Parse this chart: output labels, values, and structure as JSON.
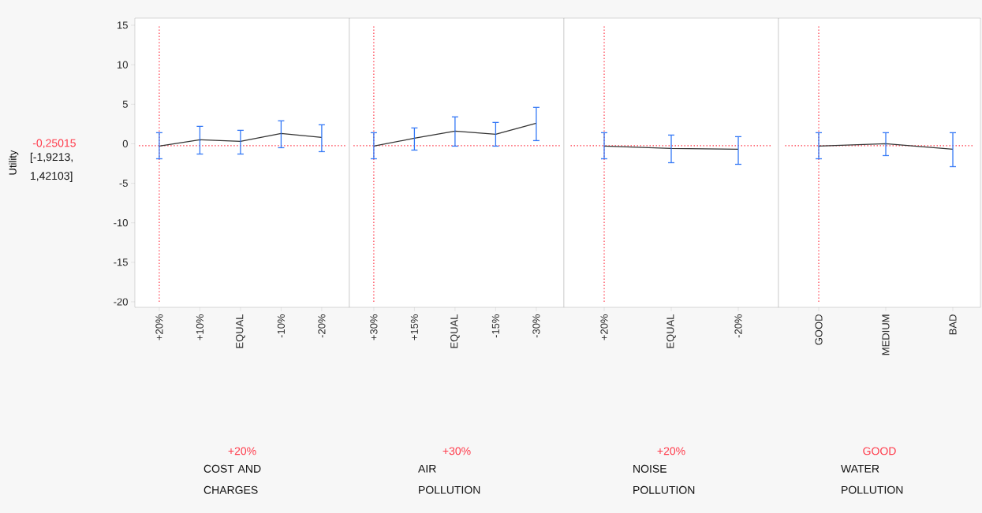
{
  "chart_data": [
    {
      "type": "line",
      "ylabel": "Utility",
      "xlabel": "COST AND CHARGES",
      "categories": [
        "+20%",
        "+10%",
        "EQUAL",
        "-10%",
        "-20%"
      ],
      "annotations": [
        "+20%",
        "-0,25015",
        "[-1,9213, 1,42103]"
      ],
      "series": [
        {
          "color": "#333333",
          "values": [
            -0.3,
            0.5,
            0.3,
            1.3,
            0.8
          ],
          "errors": [
            [
              -1.9,
              1.4
            ],
            [
              -1.3,
              2.2
            ],
            [
              -1.3,
              1.7
            ],
            [
              -0.5,
              2.9
            ],
            [
              -1.0,
              2.4
            ]
          ]
        }
      ],
      "ylim": [
        -20.7,
        15.9
      ],
      "yticks": [
        -20,
        -15,
        -10,
        -5,
        0,
        5,
        10,
        15
      ],
      "marker": "none",
      "line_style": "solid",
      "ref_lines": [
        {
          "axis": "y",
          "value": -0.25015,
          "color": "#ff3b4b",
          "line_style": "dotted"
        },
        {
          "axis": "x",
          "value": "+20%",
          "color": "#ff3b4b",
          "line_style": "dotted"
        }
      ]
    },
    {
      "type": "line",
      "xlabel": "AIR POLLUTION",
      "categories": [
        "+30%",
        "+15%",
        "EQUAL",
        "-15%",
        "-30%"
      ],
      "annotations": [
        "+30%"
      ],
      "series": [
        {
          "color": "#333333",
          "values": [
            -0.3,
            0.7,
            1.6,
            1.2,
            2.6
          ],
          "errors": [
            [
              -1.9,
              1.4
            ],
            [
              -0.8,
              2.0
            ],
            [
              -0.3,
              3.4
            ],
            [
              -0.3,
              2.7
            ],
            [
              0.4,
              4.6
            ]
          ]
        }
      ],
      "ylim": [
        -20.7,
        15.9
      ],
      "yticks": [
        -20,
        -15,
        -10,
        -5,
        0,
        5,
        10,
        15
      ],
      "tick_labels": "x",
      "marker": "none",
      "line_style": "solid",
      "ref_lines": [
        {
          "axis": "y",
          "value": -0.25015,
          "color": "#ff3b4b",
          "line_style": "dotted"
        },
        {
          "axis": "x",
          "value": "+30%",
          "color": "#ff3b4b",
          "line_style": "dotted"
        }
      ]
    },
    {
      "type": "line",
      "xlabel": "NOISE POLLUTION",
      "categories": [
        "+20%",
        "EQUAL",
        "-20%"
      ],
      "annotations": [
        "+20%"
      ],
      "series": [
        {
          "color": "#333333",
          "values": [
            -0.3,
            -0.6,
            -0.7
          ],
          "errors": [
            [
              -1.9,
              1.4
            ],
            [
              -2.4,
              1.1
            ],
            [
              -2.6,
              0.9
            ]
          ]
        }
      ],
      "ylim": [
        -20.7,
        15.9
      ],
      "yticks": [
        -20,
        -15,
        -10,
        -5,
        0,
        5,
        10,
        15
      ],
      "tick_labels": "x",
      "marker": "none",
      "line_style": "solid",
      "ref_lines": [
        {
          "axis": "y",
          "value": -0.25015,
          "color": "#ff3b4b",
          "line_style": "dotted"
        },
        {
          "axis": "x",
          "value": "+20%",
          "color": "#ff3b4b",
          "line_style": "dotted"
        }
      ]
    },
    {
      "type": "line",
      "xlabel": "WATER POLLUTION",
      "categories": [
        "GOOD",
        "MEDIUM",
        "BAD"
      ],
      "annotations": [
        "GOOD"
      ],
      "series": [
        {
          "color": "#333333",
          "values": [
            -0.3,
            0.0,
            -0.7
          ],
          "errors": [
            [
              -1.9,
              1.4
            ],
            [
              -1.5,
              1.4
            ],
            [
              -2.9,
              1.4
            ]
          ]
        }
      ],
      "ylim": [
        -20.7,
        15.9
      ],
      "yticks": [
        -20,
        -15,
        -10,
        -5,
        0,
        5,
        10,
        15
      ],
      "tick_labels": "x",
      "marker": "none",
      "line_style": "solid",
      "ref_lines": [
        {
          "axis": "y",
          "value": -0.25015,
          "color": "#ff3b4b",
          "line_style": "dotted"
        },
        {
          "axis": "x",
          "value": "GOOD",
          "color": "#ff3b4b",
          "line_style": "dotted"
        }
      ]
    }
  ]
}
